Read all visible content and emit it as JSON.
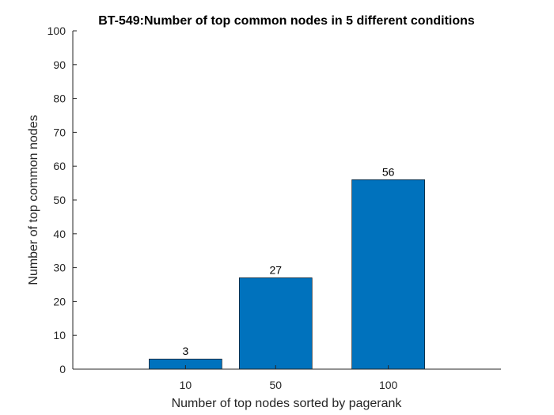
{
  "chart_data": {
    "type": "bar",
    "title": "BT-549:Number of top common nodes in 5 different conditions",
    "xlabel": "Number of top nodes sorted by pagerank",
    "ylabel": "Number of top common nodes",
    "categories": [
      "10",
      "50",
      "100"
    ],
    "x": [
      10,
      50,
      100
    ],
    "values": [
      3,
      27,
      56
    ],
    "data_labels": [
      "3",
      "27",
      "56"
    ],
    "xlim": [
      -40,
      150
    ],
    "ylim": [
      0,
      100
    ],
    "yticks": [
      0,
      10,
      20,
      30,
      40,
      50,
      60,
      70,
      80,
      90,
      100
    ],
    "ytick_labels": [
      "0",
      "10",
      "20",
      "30",
      "40",
      "50",
      "60",
      "70",
      "80",
      "90",
      "100"
    ],
    "bar_color": "#0072BD",
    "grid": false,
    "legend": "none"
  }
}
